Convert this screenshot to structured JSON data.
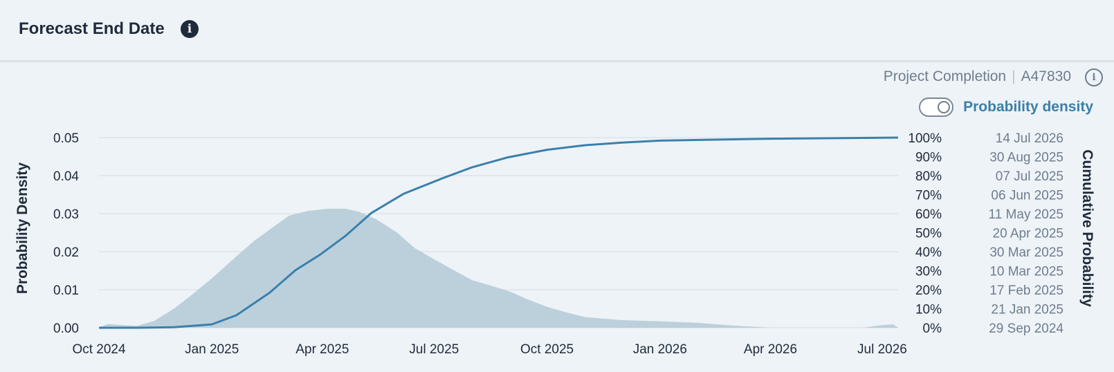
{
  "header": {
    "title": "Forecast End Date",
    "info_icon": "info-icon"
  },
  "meta": {
    "label": "Project Completion",
    "separator": "|",
    "id": "A47830",
    "info_icon": "info-outline-icon"
  },
  "toggle": {
    "label": "Probability density",
    "state": "off"
  },
  "colors": {
    "density_fill": "#bcd0dc",
    "cumulative_line": "#3a80aa",
    "toggle_label": "#3b7fa6",
    "grid": "#d8e0e8"
  },
  "chart_data": {
    "type": "area",
    "ylabel": "Probability Density",
    "y2label": "Cumulative Probability",
    "ylim": [
      0,
      0.05
    ],
    "yticks": [
      "0.00",
      "0.01",
      "0.02",
      "0.03",
      "0.04",
      "0.05"
    ],
    "xlim": [
      "2024-10-01",
      "2026-07-14"
    ],
    "xticks": [
      {
        "date": "2024-10-01",
        "label": "Oct 2024"
      },
      {
        "date": "2025-01-01",
        "label": "Jan 2025"
      },
      {
        "date": "2025-04-01",
        "label": "Apr 2025"
      },
      {
        "date": "2025-07-01",
        "label": "Jul 2025"
      },
      {
        "date": "2025-10-01",
        "label": "Oct 2025"
      },
      {
        "date": "2026-01-01",
        "label": "Jan 2026"
      },
      {
        "date": "2026-04-01",
        "label": "Apr 2026"
      },
      {
        "date": "2026-07-01",
        "label": "Jul 2026"
      }
    ],
    "grid": true,
    "series": [
      {
        "kind": "area",
        "points": [
          [
            "2024-10-01",
            0.0
          ],
          [
            "2024-10-08",
            0.001
          ],
          [
            "2024-10-20",
            0.0007
          ],
          [
            "2024-11-01",
            0.0005
          ],
          [
            "2024-11-15",
            0.0018
          ],
          [
            "2024-12-01",
            0.005
          ],
          [
            "2024-12-15",
            0.0085
          ],
          [
            "2025-01-01",
            0.013
          ],
          [
            "2025-01-20",
            0.0185
          ],
          [
            "2025-02-05",
            0.023
          ],
          [
            "2025-02-20",
            0.0265
          ],
          [
            "2025-03-05",
            0.0295
          ],
          [
            "2025-03-20",
            0.0307
          ],
          [
            "2025-04-05",
            0.0313
          ],
          [
            "2025-04-20",
            0.0313
          ],
          [
            "2025-05-01",
            0.0305
          ],
          [
            "2025-05-15",
            0.0285
          ],
          [
            "2025-06-01",
            0.025
          ],
          [
            "2025-06-15",
            0.021
          ],
          [
            "2025-07-01",
            0.018
          ],
          [
            "2025-07-15",
            0.0155
          ],
          [
            "2025-08-01",
            0.0125
          ],
          [
            "2025-08-15",
            0.0112
          ],
          [
            "2025-09-01",
            0.0095
          ],
          [
            "2025-09-15",
            0.0075
          ],
          [
            "2025-10-01",
            0.0055
          ],
          [
            "2025-10-15",
            0.0042
          ],
          [
            "2025-11-01",
            0.0028
          ],
          [
            "2025-12-01",
            0.002
          ],
          [
            "2026-01-01",
            0.0017
          ],
          [
            "2026-02-01",
            0.0013
          ],
          [
            "2026-03-01",
            0.0006
          ],
          [
            "2026-04-01",
            0.0
          ],
          [
            "2026-06-15",
            0.0
          ],
          [
            "2026-07-01",
            0.0007
          ],
          [
            "2026-07-10",
            0.0009
          ],
          [
            "2026-07-14",
            0.0
          ]
        ]
      },
      {
        "kind": "line",
        "points": [
          [
            "2024-10-01",
            0.0
          ],
          [
            "2024-11-01",
            0.0
          ],
          [
            "2024-12-01",
            0.00015
          ],
          [
            "2025-01-01",
            0.0009
          ],
          [
            "2025-01-21",
            0.0033
          ],
          [
            "2025-02-17",
            0.0092
          ],
          [
            "2025-03-10",
            0.0151
          ],
          [
            "2025-03-30",
            0.0192
          ],
          [
            "2025-04-20",
            0.0242
          ],
          [
            "2025-05-11",
            0.0302
          ],
          [
            "2025-06-06",
            0.0352
          ],
          [
            "2025-07-07",
            0.0392
          ],
          [
            "2025-08-01",
            0.0422
          ],
          [
            "2025-08-30",
            0.0448
          ],
          [
            "2025-10-01",
            0.0468
          ],
          [
            "2025-11-01",
            0.048
          ],
          [
            "2025-12-01",
            0.0487
          ],
          [
            "2026-01-01",
            0.0492
          ],
          [
            "2026-04-01",
            0.0497
          ],
          [
            "2026-07-14",
            0.05
          ]
        ]
      }
    ],
    "percentiles": [
      {
        "pct": "100%",
        "date": "14 Jul 2026"
      },
      {
        "pct": "90%",
        "date": "30 Aug 2025"
      },
      {
        "pct": "80%",
        "date": "07 Jul 2025"
      },
      {
        "pct": "70%",
        "date": "06 Jun 2025"
      },
      {
        "pct": "60%",
        "date": "11 May 2025"
      },
      {
        "pct": "50%",
        "date": "20 Apr 2025"
      },
      {
        "pct": "40%",
        "date": "30 Mar 2025"
      },
      {
        "pct": "30%",
        "date": "10 Mar 2025"
      },
      {
        "pct": "20%",
        "date": "17 Feb 2025"
      },
      {
        "pct": "10%",
        "date": "21 Jan 2025"
      },
      {
        "pct": "0%",
        "date": "29 Sep 2024"
      }
    ]
  }
}
